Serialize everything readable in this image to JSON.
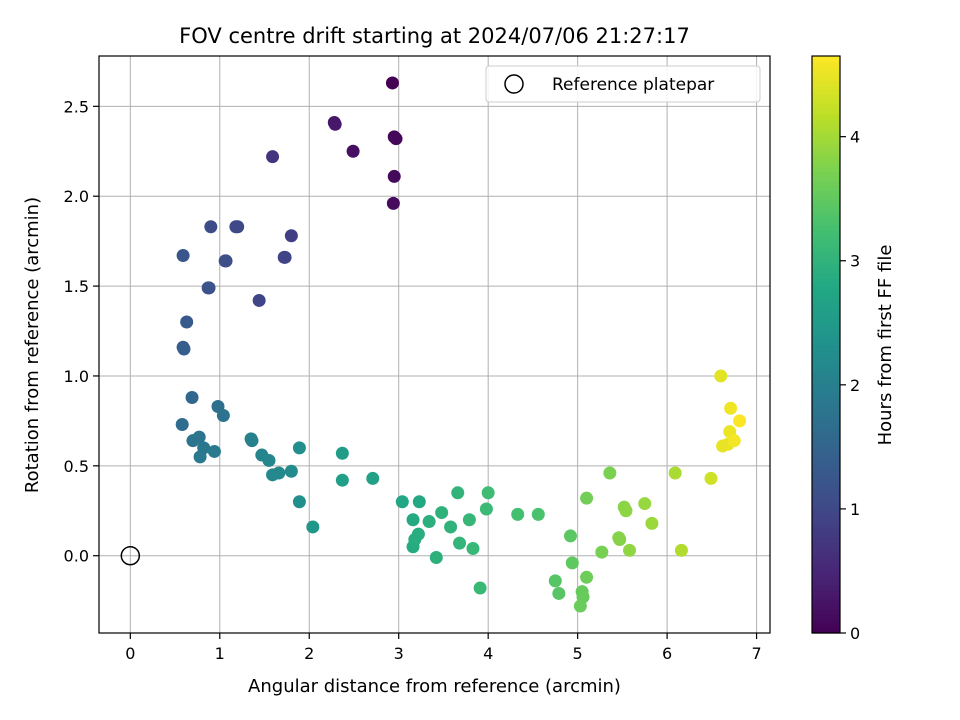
{
  "chart_data": {
    "type": "scatter",
    "title": "FOV centre drift starting at 2024/07/06 21:27:17",
    "xlabel": "Angular distance from reference (arcmin)",
    "ylabel": "Rotation from reference (arcmin)",
    "xlim": [
      -0.35,
      7.15
    ],
    "ylim": [
      -0.43,
      2.78
    ],
    "xticks": [
      0,
      1,
      2,
      3,
      4,
      5,
      6,
      7
    ],
    "xtick_labels": [
      "0",
      "1",
      "2",
      "3",
      "4",
      "5",
      "6",
      "7"
    ],
    "yticks": [
      0.0,
      0.5,
      1.0,
      1.5,
      2.0,
      2.5
    ],
    "ytick_labels": [
      "0.0",
      "0.5",
      "1.0",
      "1.5",
      "2.0",
      "2.5"
    ],
    "grid": true,
    "legend": {
      "position": "upper right",
      "entries": [
        "Reference platepar"
      ]
    },
    "colorbar": {
      "label": "Hours from first FF file",
      "range": [
        0,
        4.65
      ],
      "ticks": [
        0,
        1,
        2,
        3,
        4
      ],
      "tick_labels": [
        "0",
        "1",
        "2",
        "3",
        "4"
      ],
      "colormap": "viridis"
    },
    "reference_point": [
      0,
      0
    ],
    "points": [
      [
        2.93,
        2.63,
        0.0
      ],
      [
        2.95,
        2.33,
        0.05
      ],
      [
        2.97,
        2.32,
        0.08
      ],
      [
        2.95,
        2.11,
        0.1
      ],
      [
        2.94,
        1.96,
        0.13
      ],
      [
        2.49,
        2.25,
        0.18
      ],
      [
        2.28,
        2.41,
        0.28
      ],
      [
        2.29,
        2.4,
        0.3
      ],
      [
        1.59,
        2.22,
        0.7
      ],
      [
        1.8,
        1.78,
        0.85
      ],
      [
        1.72,
        1.66,
        0.9
      ],
      [
        1.73,
        1.66,
        0.92
      ],
      [
        1.44,
        1.42,
        0.95
      ],
      [
        1.2,
        1.83,
        0.98
      ],
      [
        1.18,
        1.83,
        1.0
      ],
      [
        0.9,
        1.83,
        1.05
      ],
      [
        1.07,
        1.64,
        1.08
      ],
      [
        1.06,
        1.64,
        1.1
      ],
      [
        0.88,
        1.49,
        1.15
      ],
      [
        0.87,
        1.49,
        1.17
      ],
      [
        0.59,
        1.67,
        1.22
      ],
      [
        0.63,
        1.3,
        1.3
      ],
      [
        0.59,
        1.16,
        1.35
      ],
      [
        0.6,
        1.15,
        1.38
      ],
      [
        0.69,
        0.88,
        1.55
      ],
      [
        0.58,
        0.73,
        1.65
      ],
      [
        0.98,
        0.83,
        1.7
      ],
      [
        1.04,
        0.78,
        1.75
      ],
      [
        0.7,
        0.64,
        1.8
      ],
      [
        0.77,
        0.66,
        1.83
      ],
      [
        0.82,
        0.6,
        1.85
      ],
      [
        0.78,
        0.55,
        1.88
      ],
      [
        0.94,
        0.58,
        1.9
      ],
      [
        1.35,
        0.65,
        2.0
      ],
      [
        1.36,
        0.64,
        2.02
      ],
      [
        1.47,
        0.56,
        2.08
      ],
      [
        1.55,
        0.53,
        2.12
      ],
      [
        1.59,
        0.45,
        2.15
      ],
      [
        1.66,
        0.46,
        2.18
      ],
      [
        1.8,
        0.47,
        2.22
      ],
      [
        1.89,
        0.6,
        2.28
      ],
      [
        1.89,
        0.3,
        2.3
      ],
      [
        2.04,
        0.16,
        2.45
      ],
      [
        2.37,
        0.57,
        2.55
      ],
      [
        2.37,
        0.42,
        2.6
      ],
      [
        2.71,
        0.43,
        2.65
      ],
      [
        3.04,
        0.3,
        2.75
      ],
      [
        3.23,
        0.3,
        2.8
      ],
      [
        3.16,
        0.2,
        2.82
      ],
      [
        3.16,
        0.05,
        2.85
      ],
      [
        3.18,
        0.09,
        2.87
      ],
      [
        3.22,
        0.12,
        2.88
      ],
      [
        3.34,
        0.19,
        2.92
      ],
      [
        3.42,
        -0.01,
        2.95
      ],
      [
        3.48,
        0.24,
        2.97
      ],
      [
        3.58,
        0.16,
        3.0
      ],
      [
        3.66,
        0.35,
        3.02
      ],
      [
        3.68,
        0.07,
        3.05
      ],
      [
        3.79,
        0.2,
        3.08
      ],
      [
        3.83,
        0.04,
        3.1
      ],
      [
        3.91,
        -0.18,
        3.12
      ],
      [
        3.98,
        0.26,
        3.15
      ],
      [
        4.0,
        0.35,
        3.18
      ],
      [
        4.33,
        0.23,
        3.25
      ],
      [
        4.56,
        0.23,
        3.3
      ],
      [
        4.75,
        -0.14,
        3.4
      ],
      [
        4.79,
        -0.21,
        3.42
      ],
      [
        4.92,
        0.11,
        3.45
      ],
      [
        4.94,
        -0.04,
        3.5
      ],
      [
        5.05,
        -0.2,
        3.55
      ],
      [
        5.06,
        -0.23,
        3.56
      ],
      [
        5.03,
        -0.28,
        3.58
      ],
      [
        5.1,
        -0.12,
        3.62
      ],
      [
        5.1,
        0.32,
        3.65
      ],
      [
        5.27,
        0.02,
        3.7
      ],
      [
        5.36,
        0.46,
        3.72
      ],
      [
        5.46,
        0.1,
        3.78
      ],
      [
        5.47,
        0.09,
        3.8
      ],
      [
        5.52,
        0.27,
        3.83
      ],
      [
        5.54,
        0.25,
        3.85
      ],
      [
        5.58,
        0.03,
        3.87
      ],
      [
        5.75,
        0.29,
        3.92
      ],
      [
        5.83,
        0.18,
        3.95
      ],
      [
        6.09,
        0.46,
        4.05
      ],
      [
        6.16,
        0.03,
        4.1
      ],
      [
        6.49,
        0.43,
        4.3
      ],
      [
        6.6,
        1.0,
        4.45
      ],
      [
        6.62,
        0.61,
        4.48
      ],
      [
        6.68,
        0.62,
        4.5
      ],
      [
        6.7,
        0.69,
        4.52
      ],
      [
        6.71,
        0.82,
        4.55
      ],
      [
        6.75,
        0.64,
        4.58
      ],
      [
        6.81,
        0.75,
        4.62
      ]
    ]
  }
}
